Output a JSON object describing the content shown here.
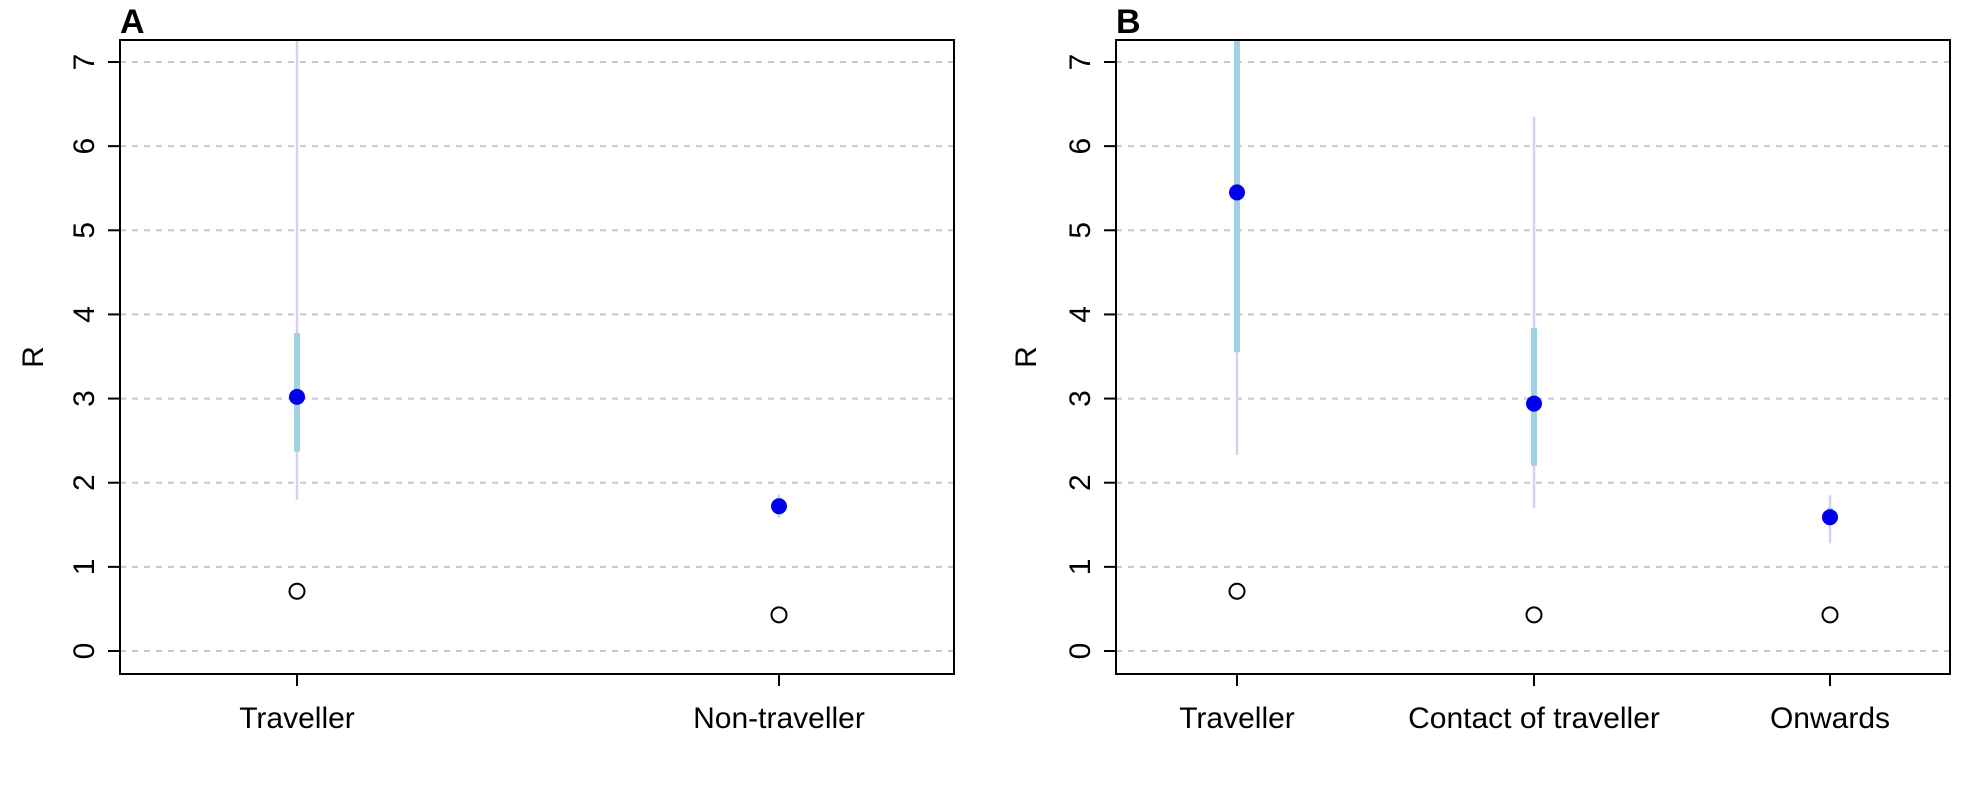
{
  "colors": {
    "point": "#0000ee",
    "ci_outer": "#d6d0f0",
    "ci_inner": "#9fd3e3",
    "open_point_stroke": "#000000",
    "grid": "#c8c8c8"
  },
  "chart_data": [
    {
      "type": "scatter",
      "panel_label": "A",
      "title": "",
      "xlabel": "",
      "ylabel": "R",
      "ylim": [
        0,
        7
      ],
      "y_ticks": [
        0,
        1,
        2,
        3,
        4,
        5,
        6,
        7
      ],
      "grid": "horizontal dashed",
      "categories": [
        "Traveller",
        "Non-traveller"
      ],
      "points": [
        {
          "category": "Traveller",
          "value": 3.02,
          "ci_inner": [
            2.37,
            3.78
          ],
          "ci_outer": [
            1.8,
            7.3
          ],
          "open_value": 0.71
        },
        {
          "category": "Non-traveller",
          "value": 1.72,
          "ci_inner": [
            1.62,
            1.82
          ],
          "ci_outer": [
            1.58,
            1.86
          ],
          "open_value": 0.43
        }
      ]
    },
    {
      "type": "scatter",
      "panel_label": "B",
      "title": "",
      "xlabel": "",
      "ylabel": "R",
      "ylim": [
        0,
        7
      ],
      "y_ticks": [
        0,
        1,
        2,
        3,
        4,
        5,
        6,
        7
      ],
      "grid": "horizontal dashed",
      "categories": [
        "Traveller",
        "Contact of traveller",
        "Onwards"
      ],
      "points": [
        {
          "category": "Traveller",
          "value": 5.45,
          "ci_inner": [
            3.55,
            7.3
          ],
          "ci_outer": [
            2.33,
            7.3
          ],
          "open_value": 0.71
        },
        {
          "category": "Contact of traveller",
          "value": 2.94,
          "ci_inner": [
            2.2,
            3.84
          ],
          "ci_outer": [
            1.7,
            6.35
          ],
          "open_value": 0.43
        },
        {
          "category": "Onwards",
          "value": 1.59,
          "ci_inner": [
            1.5,
            1.7
          ],
          "ci_outer": [
            1.28,
            1.85
          ],
          "open_value": 0.43
        }
      ]
    }
  ]
}
